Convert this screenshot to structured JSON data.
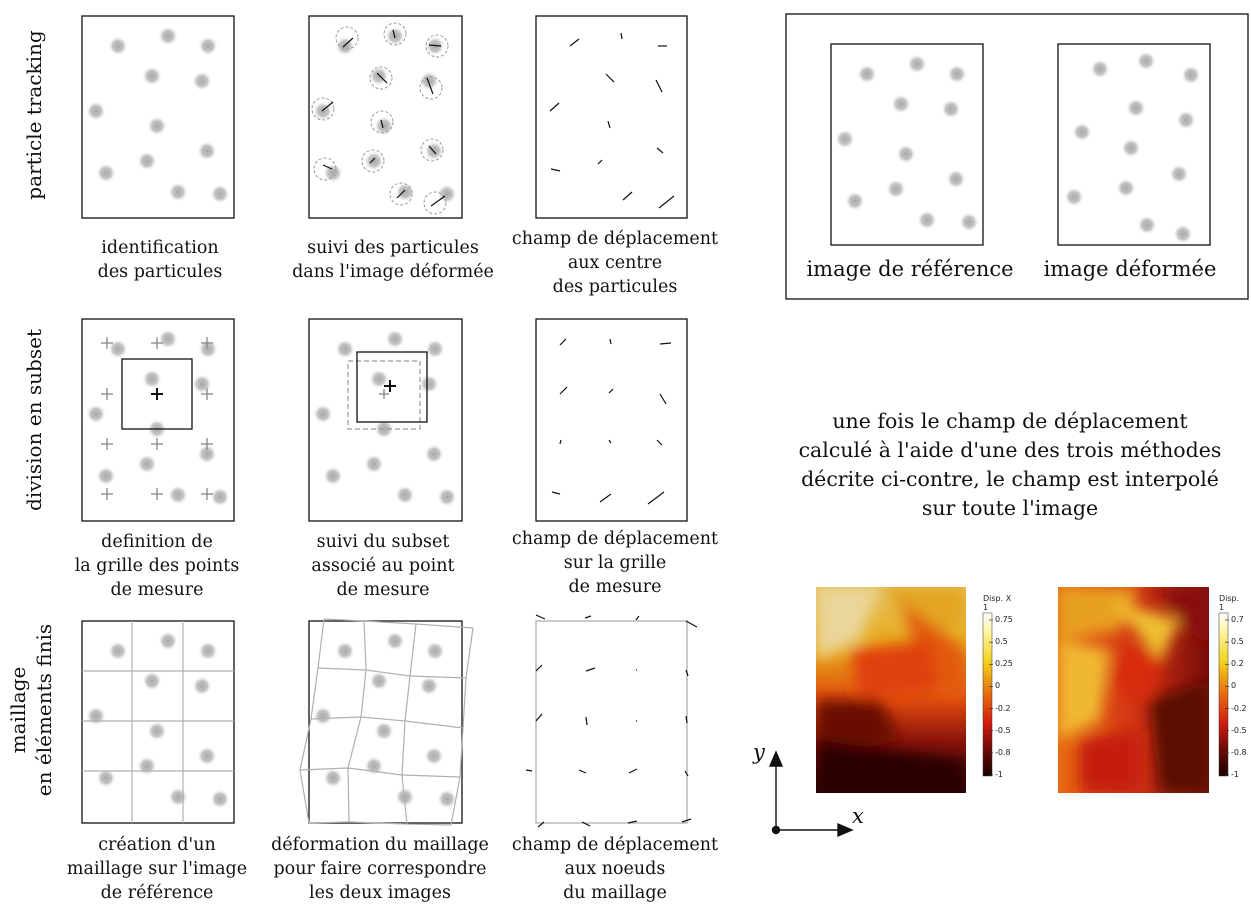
{
  "row_labels": {
    "particle_tracking": "particle tracking",
    "subset": "division en subset",
    "fem": "maillage\nen éléments finis"
  },
  "captions": {
    "r1c1": "identification\ndes particules",
    "r1c2": "suivi des particules\ndans l'image déformée",
    "r1c3": "champ de déplacement\naux centre\ndes particules",
    "r2c1": "definition de\nla grille des points\nde mesure",
    "r2c2": "suivi du subset\nassocié au point\nde mesure",
    "r2c3": "champ de déplacement\nsur la grille\nde mesure",
    "r3c1": "création d'un\nmaillage sur l'image\nde référence",
    "r3c2": "déformation du maillage\npour faire correspondre\nles deux images",
    "r3c3": "champ de déplacement\naux noeuds\ndu maillage"
  },
  "reference_box": {
    "left_caption": "image de référence",
    "right_caption": "image déformée"
  },
  "explanation": "une fois le champ de déplacement\ncalculé à l'aide d'une des trois méthodes\ndécrite ci-contre, le champ est interpolé\nsur toute l'image",
  "axes": {
    "x": "x",
    "y": "y"
  },
  "colorbars": {
    "left": {
      "title": "Disp. X\n1",
      "ticks": [
        "0.75",
        "0.5",
        "0.25",
        "0",
        "-0.2",
        "-0.5",
        "-0.8",
        "-1"
      ]
    },
    "right": {
      "title": "Disp.\n1",
      "ticks": [
        "0.7",
        "0.5",
        "0.2",
        "0",
        "-0.2",
        "-0.5",
        "-0.8",
        "-1"
      ]
    }
  },
  "colors": {
    "particle": "#b8b8b8",
    "mesh": "#b0b0b0",
    "subset_dashed": "#999999",
    "vector": "#111111"
  }
}
